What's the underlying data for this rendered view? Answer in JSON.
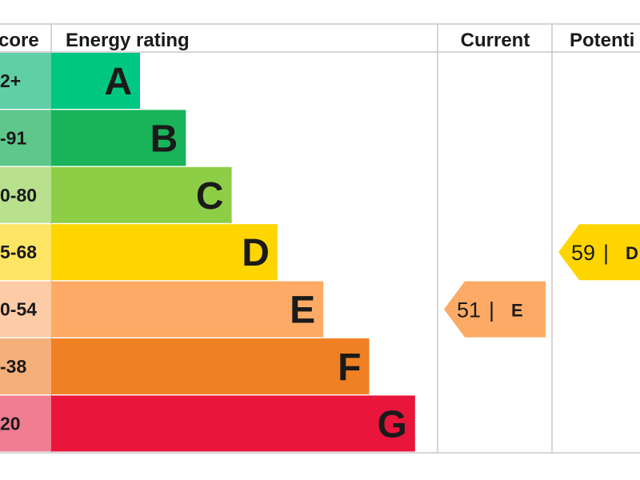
{
  "headers": {
    "score": "core",
    "rating": "Energy rating",
    "current": "Current",
    "potential": "Potenti"
  },
  "chart_data": {
    "type": "bar",
    "title": "",
    "categories": [
      "A",
      "B",
      "C",
      "D",
      "E",
      "F",
      "G"
    ],
    "score_ranges": [
      "2+",
      "-91",
      "0-80",
      "5-68",
      "0-54",
      "-38",
      "20"
    ],
    "values": [
      1,
      2,
      3,
      4,
      5,
      6,
      7
    ],
    "bar_colors": [
      "#00c781",
      "#19b459",
      "#8dce46",
      "#ffd500",
      "#fcaa65",
      "#ef8023",
      "#e9153b"
    ],
    "score_colors": [
      "#5ecfa6",
      "#5ec78a",
      "#b8e08d",
      "#ffe566",
      "#fdcca6",
      "#f5b07a",
      "#f07d92"
    ],
    "current": {
      "value": "51",
      "separator": "|",
      "rating": "E",
      "band": "E",
      "color": "#fcaa65"
    },
    "potential": {
      "value": "59",
      "separator": "|",
      "rating": "D",
      "band": "D",
      "color": "#ffd500"
    },
    "grid": true,
    "legend": "none"
  }
}
